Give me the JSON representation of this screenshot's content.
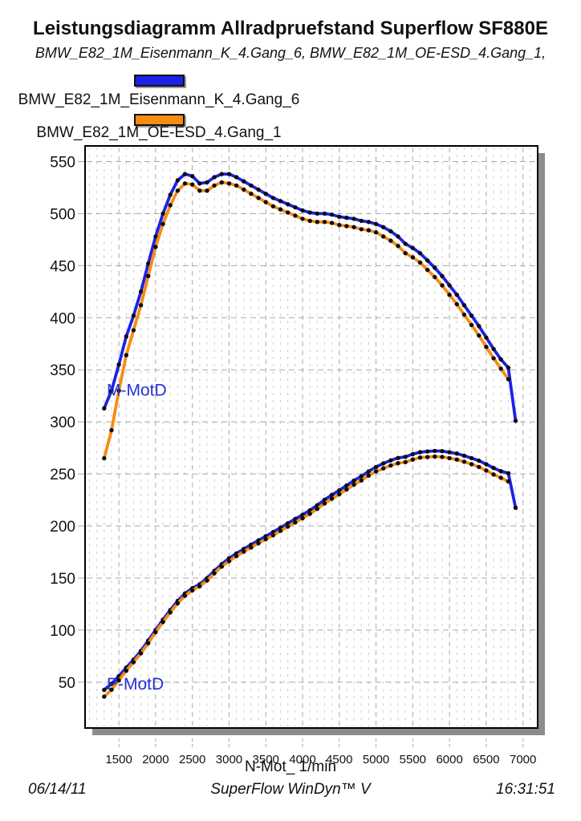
{
  "header": {
    "title": "Leistungsdiagramm Allradpruefstand Superflow SF880E",
    "subtitle": "BMW_E82_1M_Eisenmann_K_4.Gang_6, BMW_E82_1M_OE-ESD_4.Gang_1,"
  },
  "legend": {
    "entries": [
      {
        "label": "BMW_E82_1M_Eisenmann_K_4.Gang_6",
        "color": "#1c22e8"
      },
      {
        "label": "BMW_E82_1M_OE-ESD_4.Gang_1",
        "color": "#f88c12"
      }
    ]
  },
  "footer": {
    "date": "06/14/11",
    "app_name": "SuperFlow WinDyn™ V",
    "time": "16:31:51"
  },
  "chart_data": {
    "type": "line",
    "title": "Leistungsdiagramm Allradpruefstand Superflow SF880E",
    "xlabel": "N-Mot_ 1/min",
    "ylabel": "",
    "x_range": [
      1040,
      7200
    ],
    "y_range": [
      6,
      565
    ],
    "x_ticks": [
      1500,
      2000,
      2500,
      3000,
      3500,
      4000,
      4500,
      5000,
      5500,
      6000,
      6500,
      7000
    ],
    "y_ticks": [
      50,
      100,
      150,
      200,
      250,
      300,
      350,
      400,
      450,
      500,
      550
    ],
    "grid": "minor vertical lines every 100 rpm, dashed major grid every 500 rpm / 50 units",
    "legend_position": "above-chart",
    "colors": {
      "eisenmann": "#1c22e8",
      "oe_esd": "#f88c12",
      "marker": "#0d0d0d",
      "annotation": "#2630d8",
      "grid_minor": "#cdcdcd",
      "grid_major": "#a9a9a9",
      "shadow": "#8c8c8c"
    },
    "annotations": [
      {
        "text": "M-MotD",
        "rpm": 1335,
        "value": 330
      },
      {
        "text": "P-MotD",
        "rpm": 1335,
        "value": 48
      }
    ],
    "x": [
      1300,
      1400,
      1500,
      1600,
      1700,
      1800,
      1900,
      2000,
      2100,
      2200,
      2300,
      2400,
      2500,
      2600,
      2700,
      2800,
      2900,
      3000,
      3100,
      3200,
      3300,
      3400,
      3500,
      3600,
      3700,
      3800,
      3900,
      4000,
      4100,
      4200,
      4300,
      4400,
      4500,
      4600,
      4700,
      4800,
      4900,
      5000,
      5100,
      5200,
      5300,
      5400,
      5500,
      5600,
      5700,
      5800,
      5900,
      6000,
      6100,
      6200,
      6300,
      6400,
      6500,
      6600,
      6700,
      6800,
      6900
    ],
    "series": [
      {
        "id": "torque-eisenmann",
        "name": "BMW_E82_1M_Eisenmann_K_4.Gang_6 M-MotD",
        "color": "#1c22e8",
        "values": [
          313,
          330,
          355,
          382,
          402,
          425,
          452,
          478,
          500,
          518,
          532,
          538,
          536,
          529,
          530,
          535,
          538,
          538,
          535,
          531,
          527,
          523,
          519,
          515,
          512,
          509,
          506,
          503,
          501,
          500,
          500,
          499,
          497,
          496,
          495,
          493,
          492,
          490,
          487,
          483,
          478,
          471,
          467,
          462,
          455,
          448,
          440,
          431,
          422,
          412,
          402,
          392,
          381,
          370,
          360,
          352,
          301
        ]
      },
      {
        "id": "torque-oe-esd",
        "name": "BMW_E82_1M_OE-ESD_4.Gang_1 M-MotD",
        "color": "#f88c12",
        "values": [
          265,
          292,
          330,
          364,
          388,
          412,
          440,
          468,
          490,
          508,
          522,
          529,
          528,
          522,
          522,
          527,
          530,
          529,
          527,
          523,
          519,
          515,
          511,
          507,
          504,
          501,
          498,
          495,
          493,
          492,
          492,
          491,
          489,
          488,
          487,
          485,
          484,
          482,
          478,
          474,
          469,
          462,
          458,
          453,
          446,
          439,
          431,
          422,
          413,
          403,
          393,
          383,
          372,
          361,
          351,
          341,
          null
        ]
      },
      {
        "id": "power-eisenmann",
        "name": "BMW_E82_1M_Eisenmann_K_4.Gang_6 P-MotD",
        "color": "#1c22e8",
        "values": [
          42.6,
          48.4,
          55.8,
          64.0,
          71.6,
          80.1,
          89.9,
          100.1,
          110.0,
          119.3,
          128.1,
          135.2,
          140.3,
          144.0,
          149.9,
          156.9,
          163.4,
          169.0,
          173.7,
          177.9,
          182.1,
          186.2,
          190.2,
          194.2,
          198.4,
          202.6,
          206.7,
          210.7,
          215.1,
          219.9,
          225.2,
          229.9,
          234.2,
          238.9,
          243.6,
          247.8,
          252.5,
          256.6,
          260.1,
          263.0,
          265.3,
          266.4,
          269.0,
          270.9,
          271.6,
          272.1,
          271.9,
          270.8,
          269.6,
          267.5,
          265.2,
          262.7,
          259.3,
          255.7,
          252.6,
          250.7,
          217.5
        ]
      },
      {
        "id": "power-oe-esd",
        "name": "BMW_E82_1M_OE-ESD_4.Gang_1 P-MotD",
        "color": "#f88c12",
        "values": [
          36.1,
          42.8,
          51.8,
          61.0,
          69.1,
          77.7,
          87.5,
          98.0,
          107.8,
          117.0,
          125.7,
          133.0,
          138.2,
          142.1,
          147.6,
          154.5,
          161.0,
          166.2,
          171.1,
          175.3,
          179.4,
          183.4,
          187.3,
          191.1,
          195.3,
          199.4,
          203.4,
          207.4,
          211.7,
          216.4,
          221.6,
          226.2,
          230.4,
          235.1,
          239.7,
          243.8,
          248.4,
          252.4,
          255.3,
          258.1,
          260.3,
          261.3,
          263.8,
          265.7,
          266.2,
          266.6,
          266.3,
          265.2,
          263.8,
          261.7,
          259.3,
          256.7,
          253.2,
          249.5,
          246.3,
          242.8,
          null
        ]
      }
    ]
  }
}
